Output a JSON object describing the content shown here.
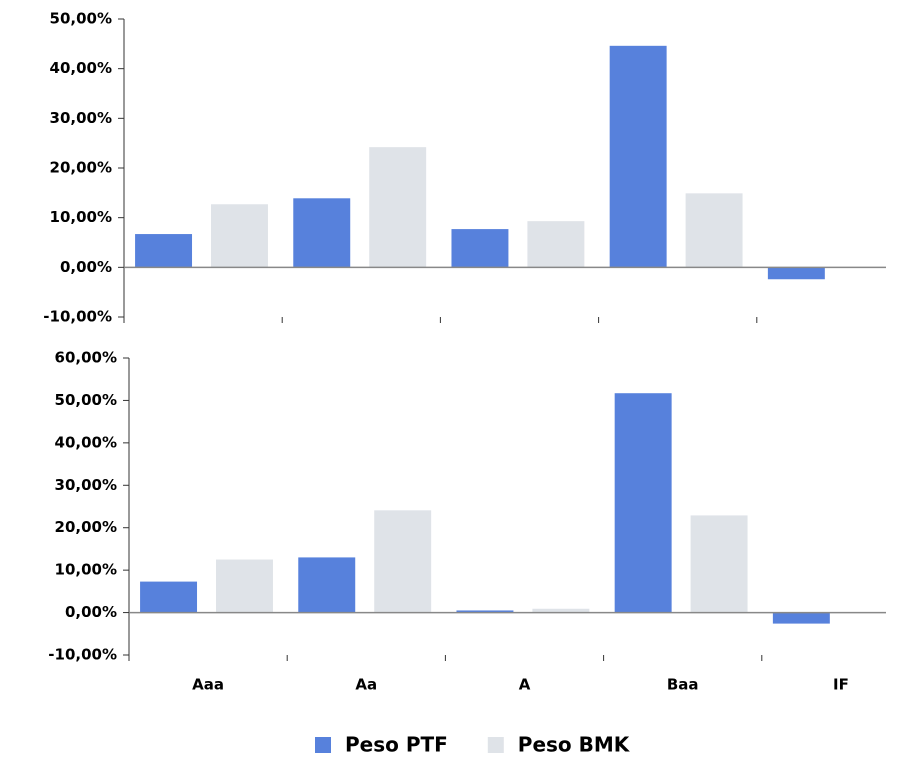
{
  "chart_data": [
    {
      "type": "bar",
      "categories": [
        null,
        null,
        null,
        null,
        null
      ],
      "series": [
        {
          "color": "#5781dc",
          "values": [
            6.7,
            13.9,
            7.7,
            44.6,
            -2.4
          ]
        },
        {
          "color": "#dfe3e8",
          "values": [
            12.7,
            24.2,
            9.3,
            14.9,
            0
          ]
        }
      ],
      "ylim": [
        -10,
        50
      ],
      "yticks": [
        {
          "value": -10,
          "label": "-10,00%"
        },
        {
          "value": 0,
          "label": "0,00%"
        },
        {
          "value": 10,
          "label": "10,00%"
        },
        {
          "value": 20,
          "label": "20,00%"
        },
        {
          "value": 30,
          "label": "30,00%"
        },
        {
          "value": 40,
          "label": "40,00%"
        },
        {
          "value": 50,
          "label": "50,00%"
        }
      ]
    },
    {
      "type": "bar",
      "categories": [
        "Aaa",
        "Aa",
        "A",
        "Baa",
        "IF"
      ],
      "series": [
        {
          "name": "Peso PTF",
          "color": "#5781dc",
          "values": [
            7.3,
            13.0,
            0.5,
            51.7,
            -2.6
          ]
        },
        {
          "name": "Peso BMK",
          "color": "#dfe3e8",
          "values": [
            12.5,
            24.1,
            0.9,
            22.9,
            0
          ]
        }
      ],
      "ylim": [
        -10,
        60
      ],
      "yticks": [
        {
          "value": -10,
          "label": "-10,00%"
        },
        {
          "value": 0,
          "label": "0,00%"
        },
        {
          "value": 10,
          "label": "10,00%"
        },
        {
          "value": 20,
          "label": "20,00%"
        },
        {
          "value": 30,
          "label": "30,00%"
        },
        {
          "value": 40,
          "label": "40,00%"
        },
        {
          "value": 50,
          "label": "50,00%"
        },
        {
          "value": 60,
          "label": "60,00%"
        }
      ],
      "legend": "bottom"
    }
  ]
}
